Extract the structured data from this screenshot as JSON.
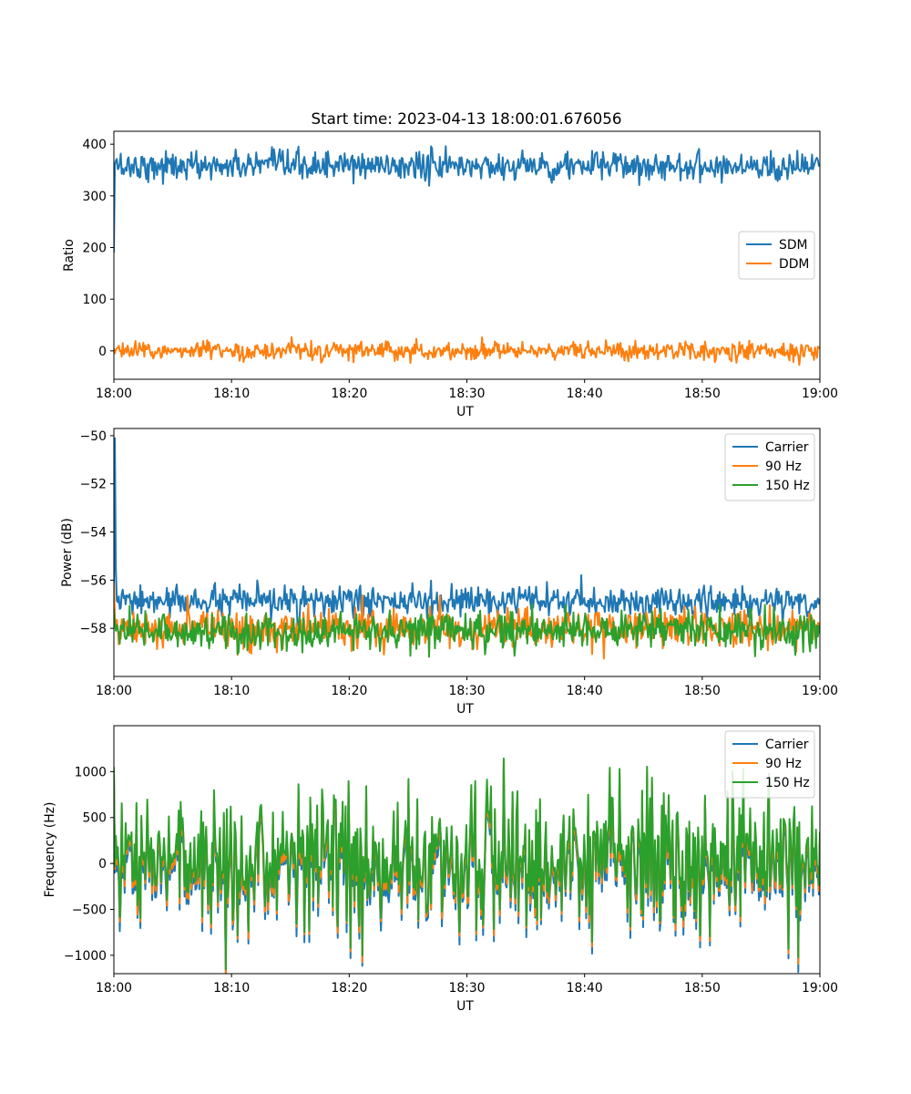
{
  "figure_title": "Start time: 2023-04-13 18:00:01.676056",
  "chart_data": [
    {
      "type": "line",
      "title": "Start time: 2023-04-13 18:00:01.676056",
      "xlabel": "UT",
      "ylabel": "Ratio",
      "x_range": [
        "18:00",
        "19:00"
      ],
      "x_ticks": [
        "18:00",
        "18:10",
        "18:20",
        "18:30",
        "18:40",
        "18:50",
        "19:00"
      ],
      "ylim": [
        -55,
        425
      ],
      "y_ticks": [
        0,
        100,
        200,
        300,
        400
      ],
      "y_tick_labels": [
        "0",
        "100",
        "200",
        "300",
        "400"
      ],
      "legend_position": "center-right",
      "grid": false,
      "series": [
        {
          "name": "SDM",
          "color": "#1f77b4",
          "mean": 358,
          "noise": 14,
          "start_values": [
            190,
            360,
            368
          ]
        },
        {
          "name": "DDM",
          "color": "#ff7f0e",
          "mean": 0,
          "noise": 9,
          "start_values": [
            5,
            -5,
            2
          ]
        }
      ]
    },
    {
      "type": "line",
      "xlabel": "UT",
      "ylabel": "Power (dB)",
      "x_range": [
        "18:00",
        "19:00"
      ],
      "x_ticks": [
        "18:00",
        "18:10",
        "18:20",
        "18:30",
        "18:40",
        "18:50",
        "19:00"
      ],
      "ylim": [
        -60.0,
        -49.7
      ],
      "y_ticks": [
        -58,
        -56,
        -54,
        -52,
        -50
      ],
      "y_tick_labels": [
        "−58",
        "−56",
        "−54",
        "−52",
        "−50"
      ],
      "legend_position": "top-right",
      "grid": false,
      "series": [
        {
          "name": "Carrier",
          "color": "#1f77b4",
          "mean": -56.9,
          "noise": 0.3,
          "start_values": [
            -57.0,
            -50.1,
            -55.5
          ]
        },
        {
          "name": "90 Hz",
          "color": "#ff7f0e",
          "mean": -58.0,
          "noise": 0.4,
          "start_values": [
            -56.1,
            -57.5,
            -58.0
          ]
        },
        {
          "name": "150 Hz",
          "color": "#2ca02c",
          "mean": -58.1,
          "noise": 0.4,
          "start_values": [
            -57.2,
            -57.8,
            -58.1
          ]
        }
      ]
    },
    {
      "type": "line",
      "xlabel": "UT",
      "ylabel": "Frequency (Hz)",
      "x_range": [
        "18:00",
        "19:00"
      ],
      "x_ticks": [
        "18:00",
        "18:10",
        "18:20",
        "18:30",
        "18:40",
        "18:50",
        "19:00"
      ],
      "ylim": [
        -1200,
        1500
      ],
      "y_ticks": [
        -1000,
        -500,
        0,
        500,
        1000
      ],
      "y_tick_labels": [
        "−1000",
        "−500",
        "0",
        "500",
        "1000"
      ],
      "legend_position": "top-right",
      "grid": false,
      "series": [
        {
          "name": "Carrier",
          "color": "#1f77b4",
          "mean": -20,
          "noise": 360,
          "offset": -80,
          "start_values": [
            1000,
            -100,
            250
          ]
        },
        {
          "name": "90 Hz",
          "color": "#ff7f0e",
          "mean": 20,
          "noise": 360,
          "offset": -30,
          "start_values": [
            1020,
            -60,
            280
          ]
        },
        {
          "name": "150 Hz",
          "color": "#2ca02c",
          "mean": 60,
          "noise": 360,
          "offset": 0,
          "start_values": [
            1050,
            -30,
            300
          ]
        }
      ]
    }
  ]
}
